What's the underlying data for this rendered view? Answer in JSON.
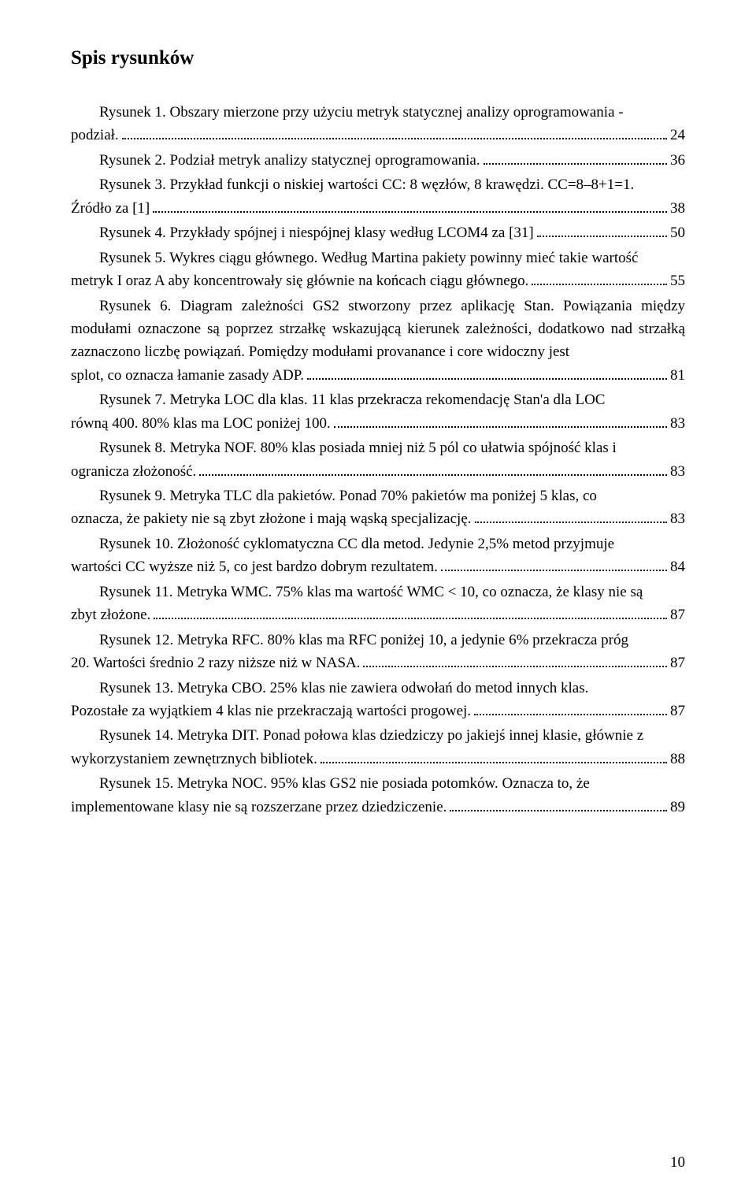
{
  "title": "Spis rysunków",
  "page_number": "10",
  "entries": [
    {
      "lines": [
        "Rysunek 1. Obszary mierzone przy użyciu metryk statycznej analizy oprogramowania -"
      ],
      "tail": "podział.",
      "page": "24",
      "indentFirst": true
    },
    {
      "lines": [],
      "tail": "Rysunek 2. Podział metryk analizy statycznej oprogramowania.",
      "page": "36",
      "indentFirst": true
    },
    {
      "lines": [
        "Rysunek 3. Przykład funkcji o niskiej wartości CC: 8 węzłów, 8 krawędzi. CC=8–8+1=1."
      ],
      "tail": "Źródło za [1]",
      "page": "38",
      "indentFirst": true
    },
    {
      "lines": [],
      "tail": "Rysunek 4. Przykłady spójnej i niespójnej klasy według LCOM4 za [31]",
      "page": "50",
      "indentFirst": true
    },
    {
      "lines": [
        "Rysunek 5. Wykres ciągu głównego. Według Martina pakiety powinny mieć takie wartość"
      ],
      "tail": "metryk I oraz A aby koncentrowały się głównie na końcach ciągu głównego.",
      "page": "55",
      "indentFirst": true
    },
    {
      "lines": [
        "Rysunek 6. Diagram zależności GS2 stworzony przez aplikację Stan. Powiązania między modułami oznaczone są poprzez strzałkę wskazującą kierunek zależności, dodatkowo nad strzałką zaznaczono liczbę powiązań. Pomiędzy modułami provanance i core widoczny jest"
      ],
      "tail": "splot, co oznacza łamanie zasady ADP.",
      "page": "81",
      "indentFirst": true
    },
    {
      "lines": [
        "Rysunek 7. Metryka LOC dla klas. 11 klas przekracza rekomendację  Stan'a dla LOC"
      ],
      "tail": "równą 400. 80% klas ma LOC poniżej 100.",
      "page": "83",
      "indentFirst": true
    },
    {
      "lines": [
        "Rysunek 8. Metryka NOF. 80% klas posiada mniej niż 5 pól co ułatwia spójność klas i"
      ],
      "tail": "ogranicza złożoność.",
      "page": "83",
      "indentFirst": true
    },
    {
      "lines": [
        "Rysunek 9. Metryka TLC dla pakietów. Ponad 70% pakietów ma poniżej 5 klas, co"
      ],
      "tail": "oznacza, że pakiety nie są zbyt złożone i mają wąską specjalizację.",
      "page": "83",
      "indentFirst": true
    },
    {
      "lines": [
        "Rysunek 10. Złożoność cyklomatyczna CC dla metod.  Jedynie 2,5% metod przyjmuje"
      ],
      "tail": "wartości CC wyższe  niż 5, co jest bardzo dobrym rezultatem.",
      "page": "84",
      "indentFirst": true
    },
    {
      "lines": [
        "Rysunek 11. Metryka WMC. 75% klas ma wartość WMC < 10, co oznacza, że klasy nie są"
      ],
      "tail": "zbyt złożone.",
      "page": "87",
      "indentFirst": true
    },
    {
      "lines": [
        "Rysunek 12. Metryka RFC. 80% klas ma RFC poniżej 10, a jedynie 6% przekracza próg"
      ],
      "tail": "20. Wartości średnio 2 razy niższe niż w NASA.",
      "page": "87",
      "indentFirst": true
    },
    {
      "lines": [
        "Rysunek 13. Metryka CBO. 25% klas nie zawiera odwołań do metod innych klas."
      ],
      "tail": "Pozostałe za wyjątkiem 4 klas nie przekraczają wartości progowej.",
      "page": "87",
      "indentFirst": true
    },
    {
      "lines": [
        "Rysunek 14. Metryka DIT. Ponad połowa klas dziedziczy po jakiejś innej klasie, głównie z"
      ],
      "tail": "wykorzystaniem zewnętrznych bibliotek.",
      "page": "88",
      "indentFirst": true
    },
    {
      "lines": [
        "Rysunek 15. Metryka NOC.  95% klas GS2 nie posiada potomków. Oznacza to, że"
      ],
      "tail": "implementowane klasy nie są rozszerzane przez dziedziczenie.",
      "page": "89",
      "indentFirst": true
    }
  ]
}
